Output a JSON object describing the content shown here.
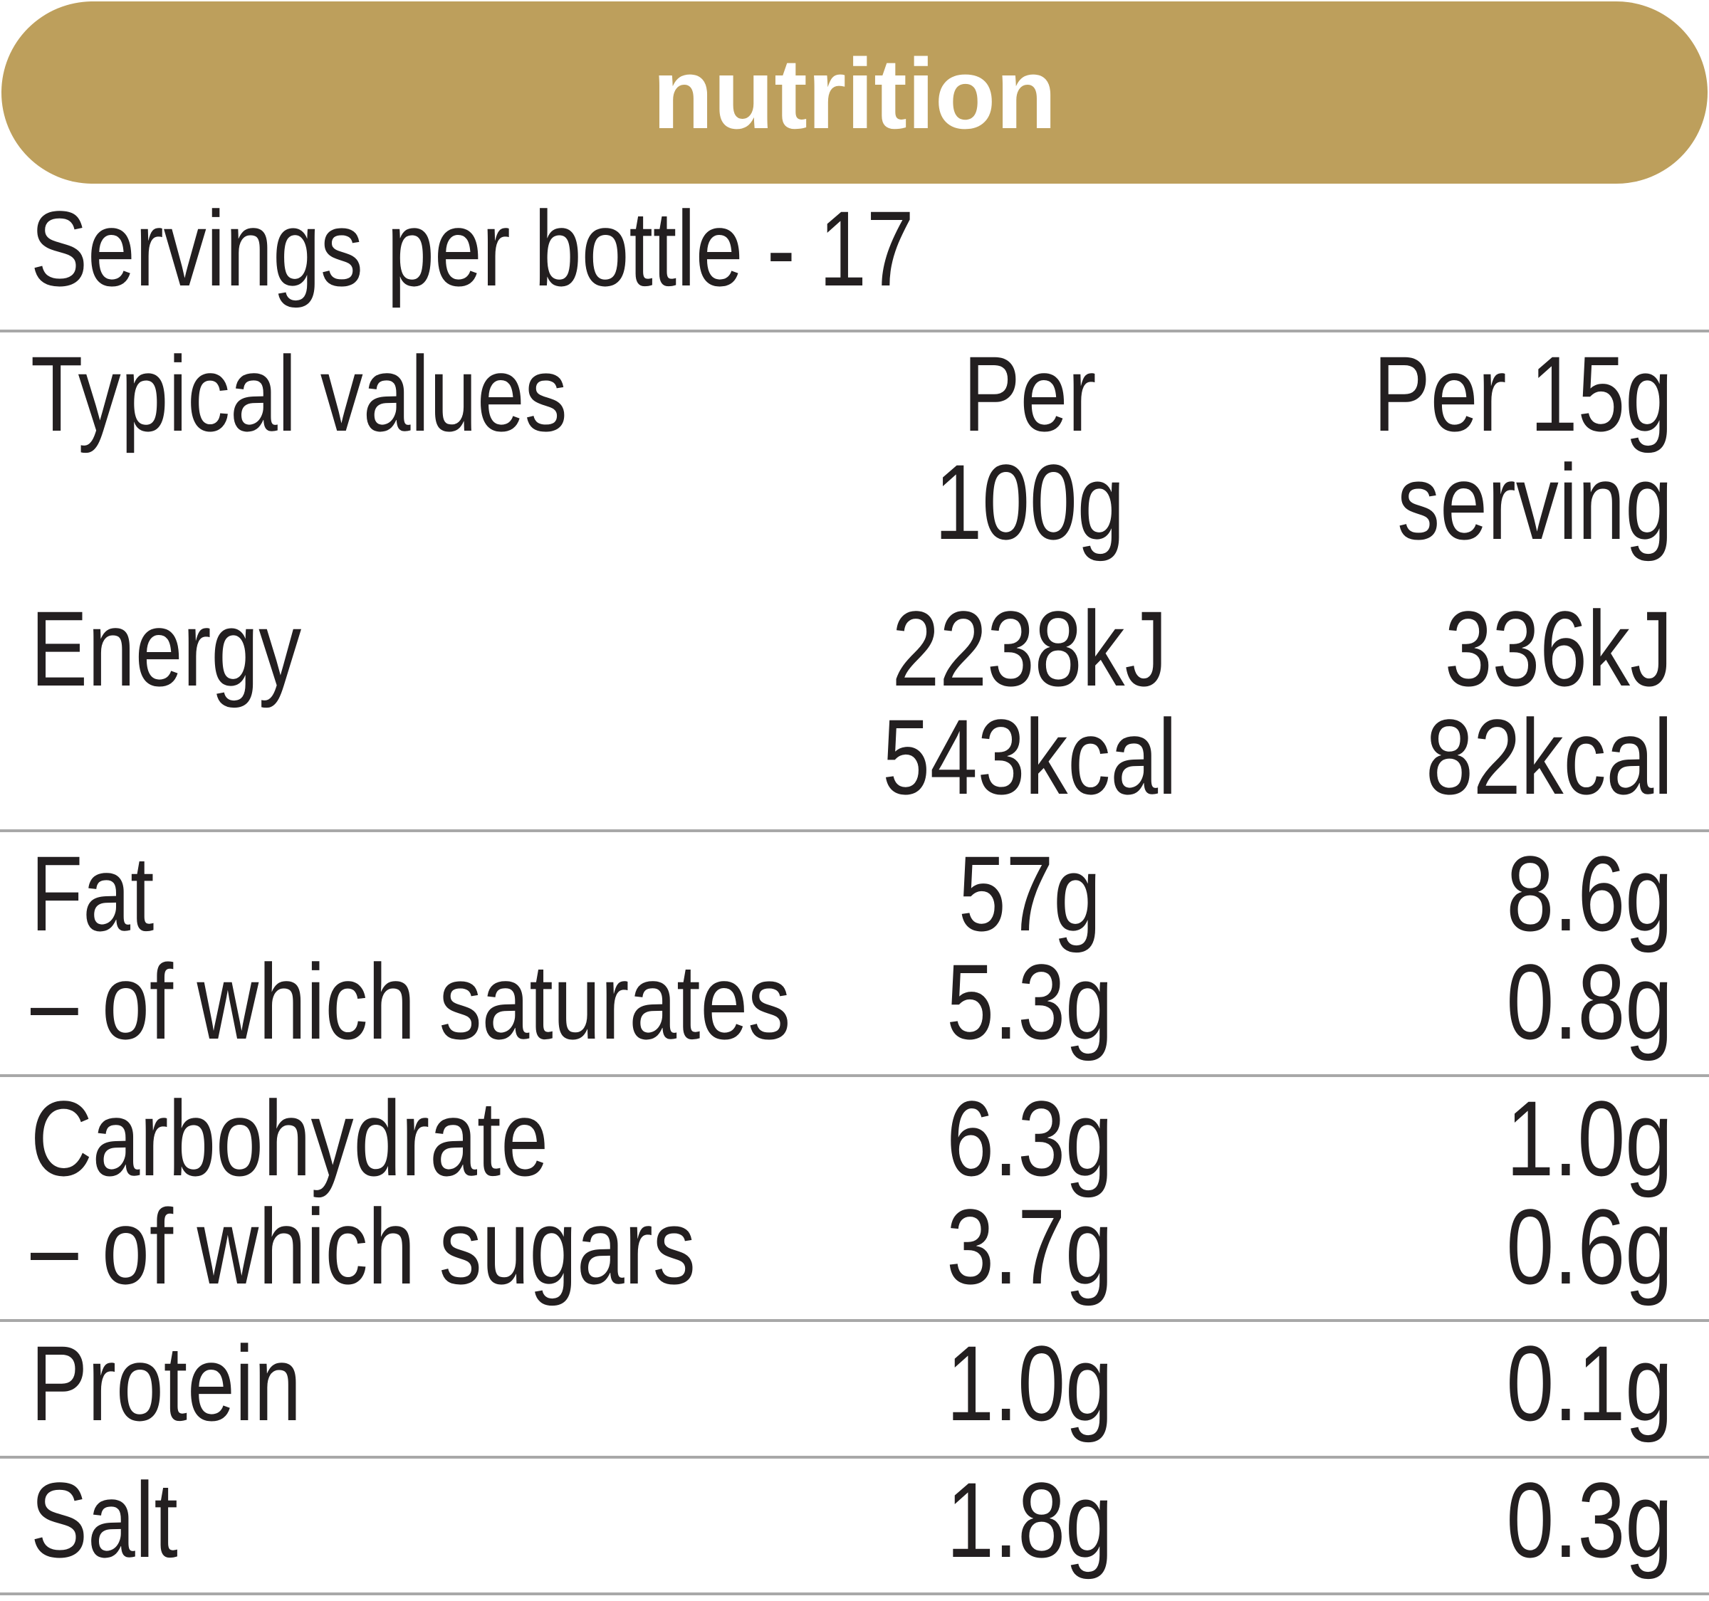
{
  "header": {
    "title": "nutrition"
  },
  "servings": "Servings per bottle - 17",
  "table": {
    "columns": [
      [
        "Typical values"
      ],
      [
        "Per",
        "100g"
      ],
      [
        "Per 15g",
        "serving"
      ]
    ],
    "groups": [
      [
        {
          "label": "Energy",
          "per_100g": [
            "2238kJ",
            "543kcal"
          ],
          "per_serving": [
            "336kJ",
            "82kcal"
          ]
        }
      ],
      [
        {
          "label": "Fat",
          "per_100g": [
            "57g"
          ],
          "per_serving": [
            "8.6g"
          ]
        },
        {
          "label": "– of which saturates",
          "per_100g": [
            "5.3g"
          ],
          "per_serving": [
            "0.8g"
          ]
        }
      ],
      [
        {
          "label": "Carbohydrate",
          "per_100g": [
            "6.3g"
          ],
          "per_serving": [
            "1.0g"
          ]
        },
        {
          "label": "– of which sugars",
          "per_100g": [
            "3.7g"
          ],
          "per_serving": [
            "0.6g"
          ]
        }
      ],
      [
        {
          "label": "Protein",
          "per_100g": [
            "1.0g"
          ],
          "per_serving": [
            "0.1g"
          ]
        }
      ],
      [
        {
          "label": "Salt",
          "per_100g": [
            "1.8g"
          ],
          "per_serving": [
            "0.3g"
          ]
        }
      ]
    ]
  }
}
